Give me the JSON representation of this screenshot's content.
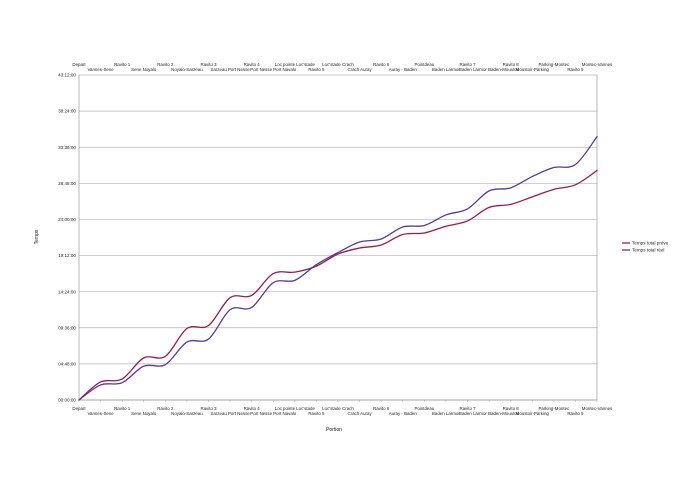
{
  "chart_data": {
    "type": "line",
    "title": "",
    "xlabel": "Portion",
    "ylabel": "Temps",
    "y_ticks": [
      "00:00:00",
      "04:48:00",
      "09:36:00",
      "14:24:00",
      "19:12:00",
      "24:00:00",
      "28:48:00",
      "33:36:00",
      "38:24:00",
      "43:12:00"
    ],
    "ylim_hours": [
      0,
      43.2
    ],
    "grid": "horizontal",
    "legend_position": "right",
    "categories": [
      "Depart",
      "Vannes-Sene",
      "Ravito 1",
      "Sene Noyalo",
      "Ravito 2",
      "Noyalo-Sarzeau",
      "Ravito 3",
      "Sarzeau Port Nesse",
      "Ravito 4",
      "Port Nesse Port Navalo",
      "Loc pointe Loc'stade",
      "Ravito 5",
      "Loc'stade Crach",
      "Crach Auray",
      "Ravito 6",
      "Auray - Baden",
      "Pointdeau",
      "Baden Larmor",
      "Ravito 7",
      "Baden Larmor Baden-Moustoir",
      "Ravito 8",
      "Moustoir-Parking",
      "Parking-Montec",
      "Ravito 9",
      "Montec-Vannes"
    ],
    "series": [
      {
        "name": "Temps total prévu",
        "color": "#9b1b4a",
        "values": [
          0,
          2.4,
          2.8,
          5.6,
          5.8,
          9.5,
          9.9,
          13.6,
          13.9,
          16.8,
          17.0,
          17.8,
          19.4,
          20.2,
          20.6,
          22.0,
          22.2,
          23.1,
          23.8,
          25.6,
          26.0,
          27.0,
          28.0,
          28.6,
          30.5
        ],
        "values_hms": [
          "00:00:00",
          "02:24:00",
          "02:48:00",
          "05:36:00",
          "05:48:00",
          "09:30:00",
          "09:54:00",
          "13:36:00",
          "13:54:00",
          "16:48:00",
          "17:00:00",
          "17:48:00",
          "19:24:00",
          "20:12:00",
          "20:36:00",
          "22:00:00",
          "22:12:00",
          "23:06:00",
          "23:48:00",
          "25:36:00",
          "26:00:00",
          "27:00:00",
          "28:00:00",
          "28:36:00",
          "30:30:00"
        ]
      },
      {
        "name": "Temps total réel",
        "color": "#5a3a8e",
        "values": [
          0,
          2.0,
          2.3,
          4.5,
          4.7,
          7.7,
          8.1,
          12.0,
          12.3,
          15.6,
          15.9,
          18.0,
          19.6,
          21.0,
          21.4,
          23.0,
          23.2,
          24.6,
          25.4,
          27.8,
          28.2,
          29.7,
          30.9,
          31.3,
          35.0
        ],
        "values_hms": [
          "00:00:00",
          "02:00:00",
          "02:18:00",
          "04:30:00",
          "04:42:00",
          "07:42:00",
          "08:06:00",
          "12:00:00",
          "12:18:00",
          "15:36:00",
          "15:54:00",
          "18:00:00",
          "19:36:00",
          "21:00:00",
          "21:24:00",
          "23:00:00",
          "23:12:00",
          "24:36:00",
          "25:24:00",
          "27:48:00",
          "28:12:00",
          "29:42:00",
          "30:54:00",
          "31:18:00",
          "35:00:00"
        ]
      }
    ]
  }
}
